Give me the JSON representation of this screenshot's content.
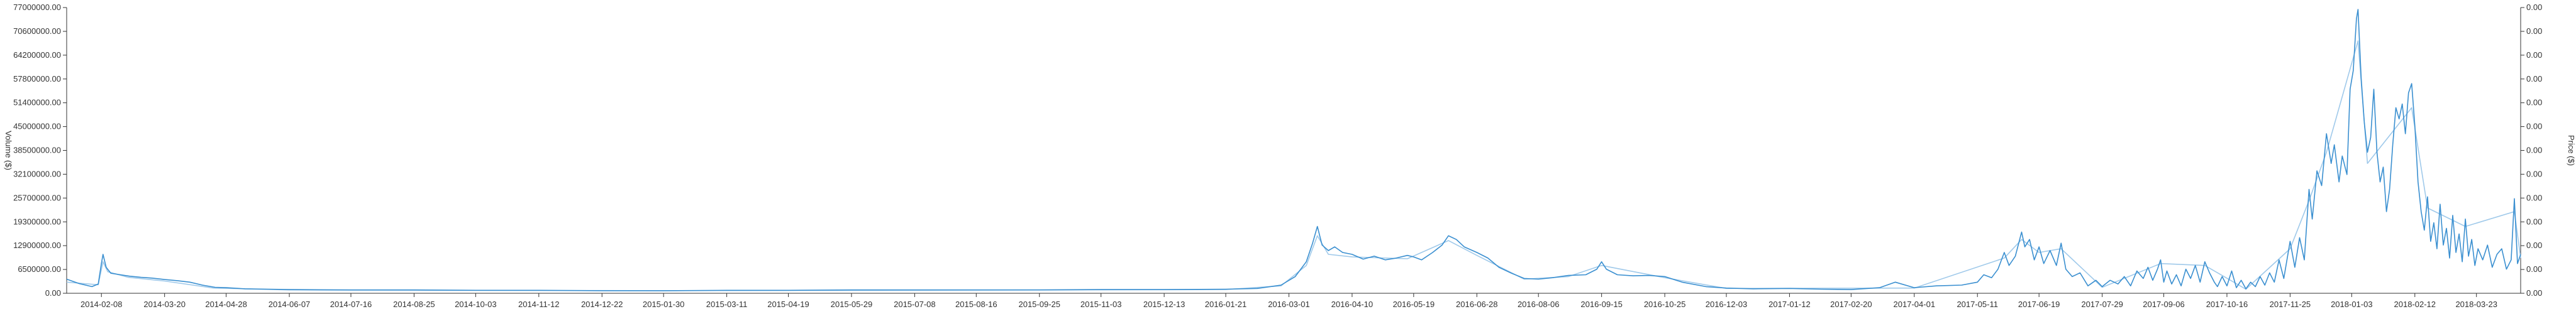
{
  "chart_data": {
    "type": "line",
    "ylabel_left": "Volume ($)",
    "ylabel_right": "Price ($)",
    "left_axis": {
      "ylim": [
        0,
        77000000
      ],
      "ticks": [
        "0.00",
        "6500000.00",
        "12900000.00",
        "19300000.00",
        "25700000.00",
        "32100000.00",
        "38500000.00",
        "45000000.00",
        "51400000.00",
        "57800000.00",
        "64200000.00",
        "70600000.00",
        "77000000.00"
      ]
    },
    "right_axis": {
      "ticks": [
        "0.00",
        "0.00",
        "0.00",
        "0.00",
        "0.00",
        "0.00",
        "0.00",
        "0.00",
        "0.00",
        "0.00",
        "0.00",
        "0.00",
        "0.00"
      ]
    },
    "x_tick_labels": [
      "2014-02-08",
      "2014-03-20",
      "2014-04-28",
      "2014-06-07",
      "2014-07-16",
      "2014-08-25",
      "2014-10-03",
      "2014-11-12",
      "2014-12-22",
      "2015-01-30",
      "2015-03-11",
      "2015-04-19",
      "2015-05-29",
      "2015-07-08",
      "2015-08-16",
      "2015-09-25",
      "2015-11-03",
      "2015-12-13",
      "2016-01-21",
      "2016-03-01",
      "2016-04-10",
      "2016-05-19",
      "2016-06-28",
      "2016-08-06",
      "2016-09-15",
      "2016-10-25",
      "2016-12-03",
      "2017-01-12",
      "2017-02-20",
      "2017-04-01",
      "2017-05-11",
      "2017-06-19",
      "2017-07-29",
      "2017-09-06",
      "2017-10-16",
      "2017-11-25",
      "2018-01-03",
      "2018-02-12",
      "2018-03-23"
    ],
    "x_range": [
      "2014-01-17",
      "2018-04-20"
    ],
    "grid": false,
    "series": [
      {
        "color": "#3a8fd0",
        "points": [
          [
            "2014-01-17",
            3800000
          ],
          [
            "2014-01-25",
            2600000
          ],
          [
            "2014-02-02",
            1800000
          ],
          [
            "2014-02-06",
            2500000
          ],
          [
            "2014-02-08",
            8000000
          ],
          [
            "2014-02-09",
            10500000
          ],
          [
            "2014-02-11",
            7000000
          ],
          [
            "2014-02-14",
            5400000
          ],
          [
            "2014-02-20",
            5000000
          ],
          [
            "2014-02-26",
            4600000
          ],
          [
            "2014-03-05",
            4300000
          ],
          [
            "2014-03-12",
            4100000
          ],
          [
            "2014-03-20",
            3700000
          ],
          [
            "2014-03-28",
            3400000
          ],
          [
            "2014-04-05",
            3000000
          ],
          [
            "2014-04-13",
            2200000
          ],
          [
            "2014-04-21",
            1600000
          ],
          [
            "2014-04-28",
            1500000
          ],
          [
            "2014-05-10",
            1200000
          ],
          [
            "2014-05-25",
            1100000
          ],
          [
            "2014-06-07",
            1000000
          ],
          [
            "2014-07-16",
            900000
          ],
          [
            "2014-08-25",
            900000
          ],
          [
            "2014-10-03",
            800000
          ],
          [
            "2014-11-12",
            800000
          ],
          [
            "2014-12-22",
            700000
          ],
          [
            "2015-01-30",
            700000
          ],
          [
            "2015-03-11",
            800000
          ],
          [
            "2015-04-19",
            800000
          ],
          [
            "2015-05-29",
            900000
          ],
          [
            "2015-07-08",
            900000
          ],
          [
            "2015-08-16",
            900000
          ],
          [
            "2015-09-25",
            900000
          ],
          [
            "2015-11-03",
            1000000
          ],
          [
            "2015-12-13",
            1000000
          ],
          [
            "2016-01-21",
            1100000
          ],
          [
            "2016-02-10",
            1300000
          ],
          [
            "2016-02-25",
            2200000
          ],
          [
            "2016-03-05",
            4500000
          ],
          [
            "2016-03-12",
            8500000
          ],
          [
            "2016-03-16",
            13500000
          ],
          [
            "2016-03-19",
            18000000
          ],
          [
            "2016-03-22",
            13000000
          ],
          [
            "2016-03-26",
            11500000
          ],
          [
            "2016-03-30",
            12500000
          ],
          [
            "2016-04-04",
            11000000
          ],
          [
            "2016-04-10",
            10500000
          ],
          [
            "2016-04-17",
            9200000
          ],
          [
            "2016-04-24",
            10000000
          ],
          [
            "2016-05-01",
            9000000
          ],
          [
            "2016-05-08",
            9500000
          ],
          [
            "2016-05-15",
            10200000
          ],
          [
            "2016-05-19",
            9800000
          ],
          [
            "2016-05-24",
            9000000
          ],
          [
            "2016-05-31",
            11000000
          ],
          [
            "2016-06-06",
            13000000
          ],
          [
            "2016-06-10",
            15500000
          ],
          [
            "2016-06-15",
            14500000
          ],
          [
            "2016-06-20",
            12500000
          ],
          [
            "2016-06-28",
            11000000
          ],
          [
            "2016-07-05",
            9500000
          ],
          [
            "2016-07-12",
            7000000
          ],
          [
            "2016-07-20",
            5400000
          ],
          [
            "2016-07-28",
            4000000
          ],
          [
            "2016-08-06",
            3800000
          ],
          [
            "2016-08-15",
            4200000
          ],
          [
            "2016-08-25",
            4800000
          ],
          [
            "2016-09-05",
            5000000
          ],
          [
            "2016-09-12",
            6500000
          ],
          [
            "2016-09-15",
            8500000
          ],
          [
            "2016-09-18",
            6500000
          ],
          [
            "2016-09-25",
            5000000
          ],
          [
            "2016-10-05",
            4700000
          ],
          [
            "2016-10-15",
            4800000
          ],
          [
            "2016-10-25",
            4500000
          ],
          [
            "2016-11-05",
            3000000
          ],
          [
            "2016-11-20",
            1800000
          ],
          [
            "2016-12-03",
            1400000
          ],
          [
            "2016-12-20",
            1200000
          ],
          [
            "2017-01-12",
            1300000
          ],
          [
            "2017-02-01",
            1100000
          ],
          [
            "2017-02-20",
            1000000
          ],
          [
            "2017-03-10",
            1500000
          ],
          [
            "2017-03-20",
            3000000
          ],
          [
            "2017-04-01",
            1500000
          ],
          [
            "2017-04-15",
            2000000
          ],
          [
            "2017-05-01",
            2200000
          ],
          [
            "2017-05-11",
            3000000
          ],
          [
            "2017-05-15",
            5000000
          ],
          [
            "2017-05-20",
            4200000
          ],
          [
            "2017-05-24",
            6500000
          ],
          [
            "2017-05-28",
            11000000
          ],
          [
            "2017-05-31",
            7500000
          ],
          [
            "2017-06-04",
            10000000
          ],
          [
            "2017-06-08",
            16500000
          ],
          [
            "2017-06-10",
            12500000
          ],
          [
            "2017-06-13",
            14500000
          ],
          [
            "2017-06-16",
            9000000
          ],
          [
            "2017-06-19",
            12500000
          ],
          [
            "2017-06-22",
            8000000
          ],
          [
            "2017-06-26",
            11500000
          ],
          [
            "2017-06-30",
            7500000
          ],
          [
            "2017-07-03",
            13500000
          ],
          [
            "2017-07-06",
            6500000
          ],
          [
            "2017-07-10",
            4500000
          ],
          [
            "2017-07-15",
            5500000
          ],
          [
            "2017-07-20",
            2000000
          ],
          [
            "2017-07-25",
            3500000
          ],
          [
            "2017-07-29",
            1800000
          ],
          [
            "2017-08-03",
            3500000
          ],
          [
            "2017-08-08",
            2500000
          ],
          [
            "2017-08-12",
            4500000
          ],
          [
            "2017-08-16",
            2000000
          ],
          [
            "2017-08-20",
            6000000
          ],
          [
            "2017-08-24",
            4000000
          ],
          [
            "2017-08-27",
            7000000
          ],
          [
            "2017-08-30",
            3500000
          ],
          [
            "2017-09-02",
            6500000
          ],
          [
            "2017-09-04",
            9000000
          ],
          [
            "2017-09-06",
            3000000
          ],
          [
            "2017-09-08",
            6000000
          ],
          [
            "2017-09-11",
            2500000
          ],
          [
            "2017-09-14",
            5000000
          ],
          [
            "2017-09-17",
            2000000
          ],
          [
            "2017-09-20",
            6500000
          ],
          [
            "2017-09-23",
            4000000
          ],
          [
            "2017-09-26",
            7500000
          ],
          [
            "2017-09-29",
            3000000
          ],
          [
            "2017-10-02",
            8500000
          ],
          [
            "2017-10-05",
            5500000
          ],
          [
            "2017-10-08",
            3000000
          ],
          [
            "2017-10-10",
            1800000
          ],
          [
            "2017-10-13",
            4500000
          ],
          [
            "2017-10-16",
            2000000
          ],
          [
            "2017-10-19",
            6000000
          ],
          [
            "2017-10-22",
            1500000
          ],
          [
            "2017-10-25",
            3500000
          ],
          [
            "2017-10-28",
            1200000
          ],
          [
            "2017-10-31",
            3000000
          ],
          [
            "2017-11-03",
            1800000
          ],
          [
            "2017-11-06",
            4500000
          ],
          [
            "2017-11-09",
            2200000
          ],
          [
            "2017-11-12",
            5500000
          ],
          [
            "2017-11-15",
            3000000
          ],
          [
            "2017-11-18",
            9000000
          ],
          [
            "2017-11-21",
            4000000
          ],
          [
            "2017-11-25",
            14000000
          ],
          [
            "2017-11-28",
            7000000
          ],
          [
            "2017-12-01",
            15000000
          ],
          [
            "2017-12-04",
            9000000
          ],
          [
            "2017-12-07",
            28000000
          ],
          [
            "2017-12-09",
            20000000
          ],
          [
            "2017-12-12",
            33000000
          ],
          [
            "2017-12-15",
            29000000
          ],
          [
            "2017-12-18",
            43000000
          ],
          [
            "2017-12-21",
            35000000
          ],
          [
            "2017-12-23",
            40000000
          ],
          [
            "2017-12-26",
            30000000
          ],
          [
            "2017-12-28",
            37000000
          ],
          [
            "2017-12-31",
            32000000
          ],
          [
            "2018-01-02",
            55000000
          ],
          [
            "2018-01-04",
            60000000
          ],
          [
            "2018-01-06",
            74000000
          ],
          [
            "2018-01-07",
            76500000
          ],
          [
            "2018-01-09",
            58000000
          ],
          [
            "2018-01-11",
            46000000
          ],
          [
            "2018-01-13",
            38000000
          ],
          [
            "2018-01-15",
            42000000
          ],
          [
            "2018-01-17",
            55000000
          ],
          [
            "2018-01-19",
            38000000
          ],
          [
            "2018-01-21",
            30000000
          ],
          [
            "2018-01-23",
            34000000
          ],
          [
            "2018-01-25",
            22000000
          ],
          [
            "2018-01-27",
            28000000
          ],
          [
            "2018-01-29",
            40000000
          ],
          [
            "2018-01-31",
            50000000
          ],
          [
            "2018-02-02",
            47000000
          ],
          [
            "2018-02-04",
            51000000
          ],
          [
            "2018-02-06",
            43000000
          ],
          [
            "2018-02-08",
            54000000
          ],
          [
            "2018-02-10",
            56500000
          ],
          [
            "2018-02-12",
            45000000
          ],
          [
            "2018-02-14",
            30000000
          ],
          [
            "2018-02-16",
            22000000
          ],
          [
            "2018-02-18",
            17000000
          ],
          [
            "2018-02-20",
            26000000
          ],
          [
            "2018-02-22",
            14000000
          ],
          [
            "2018-02-24",
            19000000
          ],
          [
            "2018-02-26",
            12000000
          ],
          [
            "2018-02-28",
            24000000
          ],
          [
            "2018-03-02",
            13000000
          ],
          [
            "2018-03-04",
            17500000
          ],
          [
            "2018-03-06",
            9500000
          ],
          [
            "2018-03-08",
            21000000
          ],
          [
            "2018-03-10",
            11000000
          ],
          [
            "2018-03-12",
            16000000
          ],
          [
            "2018-03-14",
            8500000
          ],
          [
            "2018-03-16",
            20000000
          ],
          [
            "2018-03-18",
            10000000
          ],
          [
            "2018-03-20",
            14500000
          ],
          [
            "2018-03-22",
            7500000
          ],
          [
            "2018-03-24",
            12000000
          ],
          [
            "2018-03-27",
            9000000
          ],
          [
            "2018-03-30",
            13000000
          ],
          [
            "2018-04-02",
            7000000
          ],
          [
            "2018-04-05",
            10500000
          ],
          [
            "2018-04-08",
            12000000
          ],
          [
            "2018-04-11",
            6500000
          ],
          [
            "2018-04-14",
            9000000
          ],
          [
            "2018-04-16",
            25500000
          ],
          [
            "2018-04-18",
            8000000
          ],
          [
            "2018-04-20",
            10500000
          ]
        ]
      },
      {
        "color": "#9fc9ea",
        "points": [
          [
            "2014-01-17",
            3000000
          ],
          [
            "2014-02-06",
            2300000
          ],
          [
            "2014-02-09",
            8500000
          ],
          [
            "2014-02-12",
            5800000
          ],
          [
            "2014-02-25",
            4300000
          ],
          [
            "2014-03-20",
            3300000
          ],
          [
            "2014-04-20",
            1400000
          ],
          [
            "2014-06-07",
            900000
          ],
          [
            "2015-01-30",
            700000
          ],
          [
            "2016-01-21",
            1000000
          ],
          [
            "2016-02-25",
            2000000
          ],
          [
            "2016-03-12",
            7500000
          ],
          [
            "2016-03-19",
            15500000
          ],
          [
            "2016-03-26",
            10500000
          ],
          [
            "2016-04-10",
            9800000
          ],
          [
            "2016-05-15",
            9300000
          ],
          [
            "2016-06-10",
            14200000
          ],
          [
            "2016-06-28",
            10200000
          ],
          [
            "2016-07-28",
            3800000
          ],
          [
            "2016-08-25",
            4500000
          ],
          [
            "2016-09-15",
            7500000
          ],
          [
            "2016-10-25",
            4200000
          ],
          [
            "2016-12-03",
            1300000
          ],
          [
            "2017-04-01",
            1400000
          ],
          [
            "2017-05-28",
            9500000
          ],
          [
            "2017-06-08",
            14500000
          ],
          [
            "2017-06-19",
            11000000
          ],
          [
            "2017-07-03",
            12000000
          ],
          [
            "2017-07-29",
            1600000
          ],
          [
            "2017-09-04",
            8000000
          ],
          [
            "2017-10-02",
            7500000
          ],
          [
            "2017-10-28",
            1100000
          ],
          [
            "2017-11-25",
            12000000
          ],
          [
            "2017-12-07",
            25000000
          ],
          [
            "2017-12-18",
            38000000
          ],
          [
            "2018-01-07",
            68000000
          ],
          [
            "2018-01-13",
            35000000
          ],
          [
            "2018-02-10",
            50000000
          ],
          [
            "2018-02-20",
            23000000
          ],
          [
            "2018-03-16",
            18000000
          ],
          [
            "2018-04-16",
            22000000
          ],
          [
            "2018-04-20",
            9500000
          ]
        ]
      }
    ]
  }
}
